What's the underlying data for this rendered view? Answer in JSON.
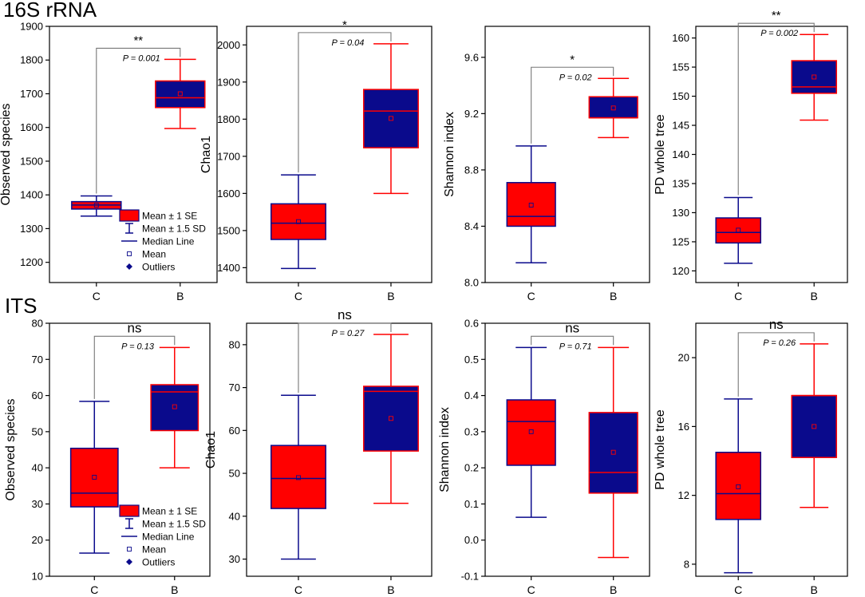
{
  "figure": {
    "row_titles": [
      "16S rRNA",
      "ITS"
    ]
  },
  "colors": {
    "red": "#ff0000",
    "blue": "#0a0a8c",
    "line": "#000000",
    "bracket": "#777777"
  },
  "legend": [
    {
      "label": "Mean ± 1 SE",
      "icon": "box"
    },
    {
      "label": "Mean ± 1.5 SD",
      "icon": "whisker"
    },
    {
      "label": "Median Line",
      "icon": "line"
    },
    {
      "label": "Mean",
      "icon": "square"
    },
    {
      "label": "Outliers",
      "icon": "diamond"
    }
  ],
  "chart_data": [
    {
      "type": "box",
      "row": 0,
      "col": 0,
      "title": "16S rRNA",
      "ylabel": "Observed species",
      "ylim": [
        1140,
        1900
      ],
      "yticks": [
        1200,
        1300,
        1400,
        1500,
        1600,
        1700,
        1800,
        1900
      ],
      "categories": [
        "C",
        "B"
      ],
      "boxes": [
        {
          "category": "C",
          "fill": "red",
          "edge": "blue",
          "whisker_low": 1337,
          "q1": 1358,
          "median": 1370,
          "q3": 1380,
          "whisker_high": 1397,
          "mean": 1369
        },
        {
          "category": "B",
          "fill": "blue",
          "edge": "red",
          "whisker_low": 1597,
          "q1": 1659,
          "median": 1688,
          "q3": 1738,
          "whisker_high": 1802,
          "mean": 1700
        }
      ],
      "significance": {
        "marker": "**",
        "p_label": "P = 0.001"
      },
      "legend": true
    },
    {
      "type": "box",
      "row": 0,
      "col": 1,
      "ylabel": "Chao1",
      "ylim": [
        1360,
        2050
      ],
      "yticks": [
        1400,
        1500,
        1600,
        1700,
        1800,
        1900,
        2000
      ],
      "categories": [
        "C",
        "B"
      ],
      "boxes": [
        {
          "category": "C",
          "fill": "red",
          "edge": "blue",
          "whisker_low": 1398,
          "q1": 1476,
          "median": 1520,
          "q3": 1572,
          "whisker_high": 1650,
          "mean": 1524
        },
        {
          "category": "B",
          "fill": "blue",
          "edge": "red",
          "whisker_low": 1600,
          "q1": 1723,
          "median": 1822,
          "q3": 1880,
          "whisker_high": 2003,
          "mean": 1802
        }
      ],
      "significance": {
        "marker": "*",
        "p_label": "P = 0.04"
      }
    },
    {
      "type": "box",
      "row": 0,
      "col": 2,
      "ylabel": "Shannon index",
      "ylim": [
        8.0,
        9.82
      ],
      "yticks": [
        "8.0",
        "8.4",
        "8.8",
        "9.2",
        "9.6"
      ],
      "categories": [
        "C",
        "B"
      ],
      "boxes": [
        {
          "category": "C",
          "fill": "red",
          "edge": "blue",
          "whisker_low": 8.14,
          "q1": 8.4,
          "median": 8.47,
          "q3": 8.71,
          "whisker_high": 8.97,
          "mean": 8.55
        },
        {
          "category": "B",
          "fill": "blue",
          "edge": "red",
          "whisker_low": 9.03,
          "q1": 9.17,
          "median": 9.17,
          "q3": 9.32,
          "whisker_high": 9.45,
          "mean": 9.24
        }
      ],
      "significance": {
        "marker": "*",
        "p_label": "P = 0.02"
      }
    },
    {
      "type": "box",
      "row": 0,
      "col": 3,
      "ylabel": "PD whole tree",
      "ylim": [
        118,
        162
      ],
      "yticks": [
        120,
        125,
        130,
        135,
        140,
        145,
        150,
        155,
        160
      ],
      "categories": [
        "C",
        "B"
      ],
      "boxes": [
        {
          "category": "C",
          "fill": "red",
          "edge": "blue",
          "whisker_low": 121.3,
          "q1": 124.8,
          "median": 126.6,
          "q3": 129.1,
          "whisker_high": 132.6,
          "mean": 127.0
        },
        {
          "category": "B",
          "fill": "blue",
          "edge": "red",
          "whisker_low": 145.9,
          "q1": 150.5,
          "median": 151.6,
          "q3": 156.1,
          "whisker_high": 160.6,
          "mean": 153.3
        }
      ],
      "significance": {
        "marker": "**",
        "p_label": "P = 0.002"
      }
    },
    {
      "type": "box",
      "row": 1,
      "col": 0,
      "title": "ITS",
      "ylabel": "Observed species",
      "ylim": [
        10,
        80
      ],
      "yticks": [
        10,
        20,
        30,
        40,
        50,
        60,
        70,
        80
      ],
      "categories": [
        "C",
        "B"
      ],
      "boxes": [
        {
          "category": "C",
          "fill": "red",
          "edge": "blue",
          "whisker_low": 16.4,
          "q1": 29.2,
          "median": 33.0,
          "q3": 45.4,
          "whisker_high": 58.4,
          "mean": 37.4
        },
        {
          "category": "B",
          "fill": "blue",
          "edge": "red",
          "whisker_low": 40.0,
          "q1": 50.3,
          "median": 61.0,
          "q3": 63.0,
          "whisker_high": 73.3,
          "mean": 56.9
        }
      ],
      "significance": {
        "marker": "ns",
        "p_label": "P = 0.13"
      },
      "legend": true
    },
    {
      "type": "box",
      "row": 1,
      "col": 1,
      "ylabel": "Chao1",
      "ylim": [
        26,
        85
      ],
      "yticks": [
        30,
        40,
        50,
        60,
        70,
        80
      ],
      "categories": [
        "C",
        "B"
      ],
      "boxes": [
        {
          "category": "C",
          "fill": "red",
          "edge": "blue",
          "whisker_low": 30.0,
          "q1": 41.8,
          "median": 48.8,
          "q3": 56.5,
          "whisker_high": 68.2,
          "mean": 49.0
        },
        {
          "category": "B",
          "fill": "blue",
          "edge": "red",
          "whisker_low": 43.0,
          "q1": 55.2,
          "median": 69.1,
          "q3": 70.3,
          "whisker_high": 82.4,
          "mean": 62.8
        }
      ],
      "significance": {
        "marker": "ns",
        "p_label": "P = 0.27"
      }
    },
    {
      "type": "box",
      "row": 1,
      "col": 2,
      "ylabel": "Shannon index",
      "ylim": [
        -0.1,
        0.6
      ],
      "yticks": [
        "-0.1",
        "0.0",
        "0.1",
        "0.2",
        "0.3",
        "0.4",
        "0.5",
        "0.6"
      ],
      "categories": [
        "C",
        "B"
      ],
      "boxes": [
        {
          "category": "C",
          "fill": "red",
          "edge": "blue",
          "whisker_low": 0.063,
          "q1": 0.207,
          "median": 0.328,
          "q3": 0.388,
          "whisker_high": 0.533,
          "mean": 0.3
        },
        {
          "category": "B",
          "fill": "blue",
          "edge": "red",
          "whisker_low": -0.048,
          "q1": 0.13,
          "median": 0.187,
          "q3": 0.353,
          "whisker_high": 0.533,
          "mean": 0.243
        }
      ],
      "significance": {
        "marker": "ns",
        "p_label": "P = 0.71"
      }
    },
    {
      "type": "box",
      "row": 1,
      "col": 3,
      "ylabel": "PD whole tree",
      "ylim": [
        7.3,
        22
      ],
      "yticks": [
        8,
        12,
        16,
        20
      ],
      "categories": [
        "C",
        "B"
      ],
      "boxes": [
        {
          "category": "C",
          "fill": "red",
          "edge": "blue",
          "whisker_low": 7.5,
          "q1": 10.6,
          "median": 12.1,
          "q3": 14.5,
          "whisker_high": 17.6,
          "mean": 12.5
        },
        {
          "category": "B",
          "fill": "blue",
          "edge": "red",
          "whisker_low": 11.3,
          "q1": 14.2,
          "median": 17.8,
          "q3": 17.8,
          "whisker_high": 20.8,
          "mean": 16.0
        }
      ],
      "significance": {
        "marker": "ns",
        "p_label": "P = 0.26"
      }
    }
  ]
}
